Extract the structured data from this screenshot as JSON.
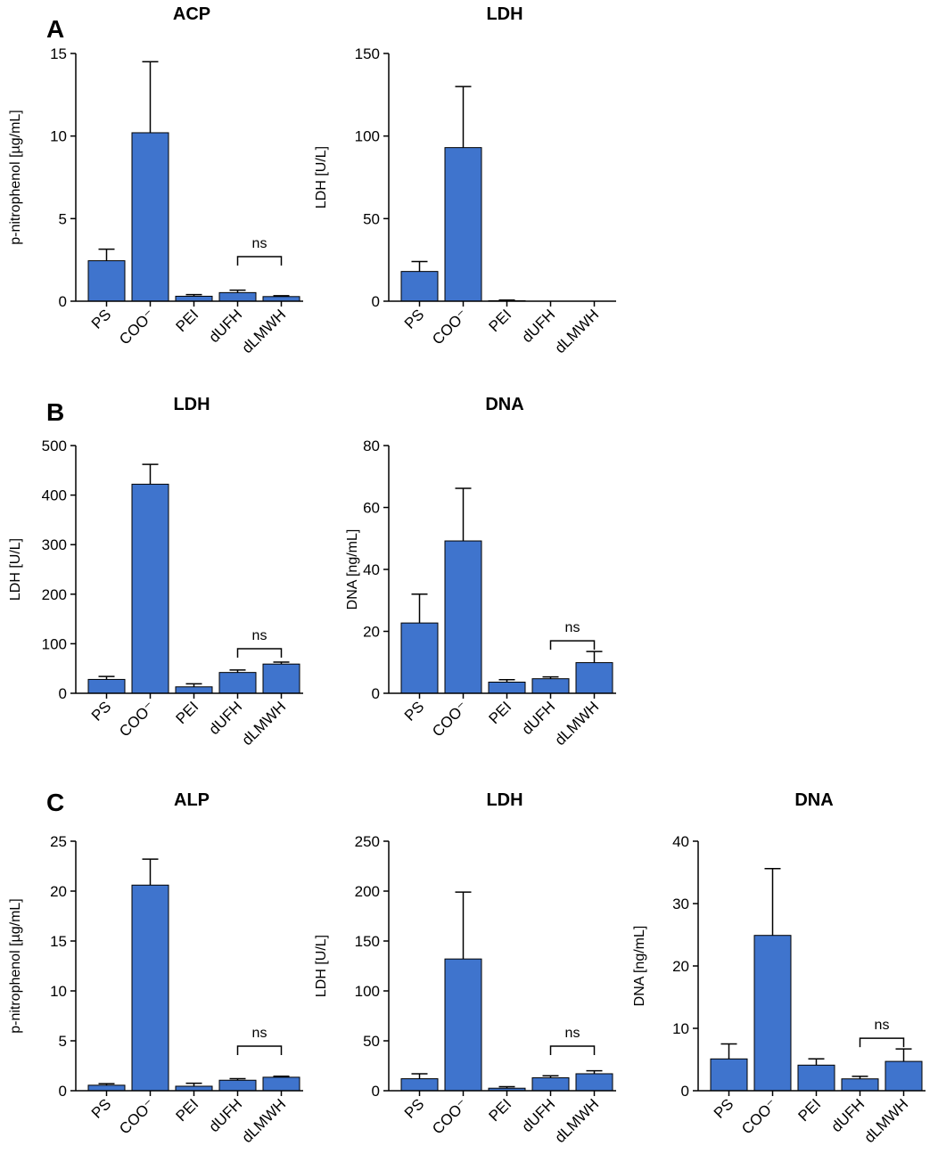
{
  "panel_letters": [
    "A",
    "B",
    "C"
  ],
  "bar_color": "#3f74cd",
  "chart_data": [
    {
      "type": "bar",
      "panel": "A",
      "title": "ACP",
      "ylabel": "p-nitrophenol [µg/mL]",
      "xlabel": "",
      "categories": [
        "PS",
        "COO⁻",
        "PEI",
        "dUFH",
        "dLMWH"
      ],
      "values": [
        2.45,
        10.2,
        0.3,
        0.52,
        0.28
      ],
      "errors": [
        0.7,
        4.3,
        0.1,
        0.15,
        0.05
      ],
      "ylim": [
        0,
        15
      ],
      "yticks": [
        0,
        5,
        10,
        15
      ],
      "annotation": {
        "text": "ns",
        "from": 3,
        "to": 4
      }
    },
    {
      "type": "bar",
      "panel": "A",
      "title": "LDH",
      "ylabel": "LDH [U/L]",
      "xlabel": "",
      "categories": [
        "PS",
        "COO⁻",
        "PEI",
        "dUFH",
        "dLMWH"
      ],
      "values": [
        18,
        93,
        0.3,
        0,
        0
      ],
      "errors": [
        6,
        37,
        0.4,
        0,
        0
      ],
      "ylim": [
        0,
        150
      ],
      "yticks": [
        0,
        50,
        100,
        150
      ],
      "annotation": null
    },
    {
      "type": "bar",
      "panel": "B",
      "title": "LDH",
      "ylabel": "LDH [U/L]",
      "xlabel": "",
      "categories": [
        "PS",
        "COO⁻",
        "PEI",
        "dUFH",
        "dLMWH"
      ],
      "values": [
        28,
        422,
        13,
        42,
        59
      ],
      "errors": [
        6,
        40,
        6,
        5,
        4
      ],
      "ylim": [
        0,
        500
      ],
      "yticks": [
        0,
        100,
        200,
        300,
        400,
        500
      ],
      "annotation": {
        "text": "ns",
        "from": 3,
        "to": 4
      }
    },
    {
      "type": "bar",
      "panel": "B",
      "title": "DNA",
      "ylabel": "DNA [ng/mL]",
      "xlabel": "",
      "categories": [
        "PS",
        "COO⁻",
        "PEI",
        "dUFH",
        "dLMWH"
      ],
      "values": [
        22.7,
        49.2,
        3.6,
        4.7,
        9.9
      ],
      "errors": [
        9.3,
        17,
        0.8,
        0.6,
        3.6
      ],
      "ylim": [
        0,
        80
      ],
      "yticks": [
        0,
        20,
        40,
        60,
        80
      ],
      "annotation": {
        "text": "ns",
        "from": 3,
        "to": 4
      }
    },
    {
      "type": "bar",
      "panel": "C",
      "title": "ALP",
      "ylabel": "p-nitrophenol [µg/mL]",
      "xlabel": "",
      "categories": [
        "PS",
        "COO⁻",
        "PEI",
        "dUFH",
        "dLMWH"
      ],
      "values": [
        0.55,
        20.6,
        0.45,
        1.05,
        1.35
      ],
      "errors": [
        0.15,
        2.6,
        0.3,
        0.15,
        0.1
      ],
      "ylim": [
        0,
        25
      ],
      "yticks": [
        0,
        5,
        10,
        15,
        20,
        25
      ],
      "annotation": {
        "text": "ns",
        "from": 3,
        "to": 4
      }
    },
    {
      "type": "bar",
      "panel": "C",
      "title": "LDH",
      "ylabel": "LDH [U/L]",
      "xlabel": "",
      "categories": [
        "PS",
        "COO⁻",
        "PEI",
        "dUFH",
        "dLMWH"
      ],
      "values": [
        12,
        132,
        2.5,
        13,
        17
      ],
      "errors": [
        5,
        67,
        1.5,
        2,
        3
      ],
      "ylim": [
        0,
        250
      ],
      "yticks": [
        0,
        50,
        100,
        150,
        200,
        250
      ],
      "annotation": {
        "text": "ns",
        "from": 3,
        "to": 4
      }
    },
    {
      "type": "bar",
      "panel": "C",
      "title": "DNA",
      "ylabel": "DNA [ng/mL]",
      "xlabel": "",
      "categories": [
        "PS",
        "COO⁻",
        "PEI",
        "dUFH",
        "dLMWH"
      ],
      "values": [
        5.1,
        24.9,
        4.1,
        1.9,
        4.7
      ],
      "errors": [
        2.4,
        10.7,
        1.0,
        0.4,
        2.0
      ],
      "ylim": [
        0,
        40
      ],
      "yticks": [
        0,
        10,
        20,
        30,
        40
      ],
      "annotation": {
        "text": "ns",
        "from": 3,
        "to": 4
      }
    }
  ]
}
